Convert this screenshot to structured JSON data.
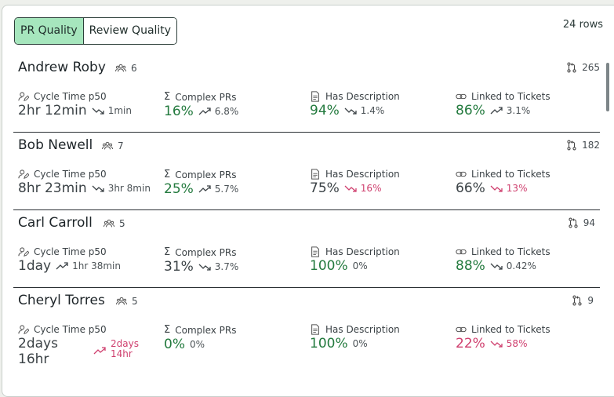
{
  "tabs": [
    {
      "label": "PR Quality",
      "active": true
    },
    {
      "label": "Review Quality",
      "active": false
    }
  ],
  "rows_count": "24 rows",
  "metric_labels": {
    "cycle": "Cycle Time p50",
    "complex": "Complex PRs",
    "description": "Has Description",
    "linked": "Linked to Tickets"
  },
  "people": [
    {
      "name": "Andrew Roby",
      "team": "6",
      "prs": "265",
      "cycle": {
        "value": "2hr 12min",
        "delta": "1min",
        "trend": "down"
      },
      "complex": {
        "value": "16%",
        "delta": "6.8%",
        "trend": "up"
      },
      "description": {
        "value": "94%",
        "delta": "1.4%",
        "trend": "down"
      },
      "linked": {
        "value": "86%",
        "delta": "3.1%",
        "trend": "up"
      }
    },
    {
      "name": "Bob Newell",
      "team": "7",
      "prs": "182",
      "cycle": {
        "value": "8hr 23min",
        "delta": "3hr 8min",
        "trend": "down"
      },
      "complex": {
        "value": "25%",
        "delta": "5.7%",
        "trend": "up"
      },
      "description": {
        "value": "75%",
        "delta": "16%",
        "trend": "down"
      },
      "linked": {
        "value": "66%",
        "delta": "13%",
        "trend": "down"
      }
    },
    {
      "name": "Carl Carroll",
      "team": "5",
      "prs": "94",
      "cycle": {
        "value": "1day",
        "delta": "1hr 38min",
        "trend": "up"
      },
      "complex": {
        "value": "31%",
        "delta": "3.7%",
        "trend": "down"
      },
      "description": {
        "value": "100%",
        "delta": "0%",
        "trend": "none"
      },
      "linked": {
        "value": "88%",
        "delta": "0.42%",
        "trend": "down"
      }
    },
    {
      "name": "Cheryl Torres",
      "team": "5",
      "prs": "9",
      "cycle": {
        "value_line1": "2days",
        "value_line2": "16hr",
        "delta_line1": "2days",
        "delta_line2": "14hr",
        "trend": "up"
      },
      "complex": {
        "value": "0%",
        "delta": "0%",
        "trend": "none"
      },
      "description": {
        "value": "100%",
        "delta": "0%",
        "trend": "none"
      },
      "linked": {
        "value": "22%",
        "delta": "58%",
        "trend": "down"
      }
    }
  ]
}
